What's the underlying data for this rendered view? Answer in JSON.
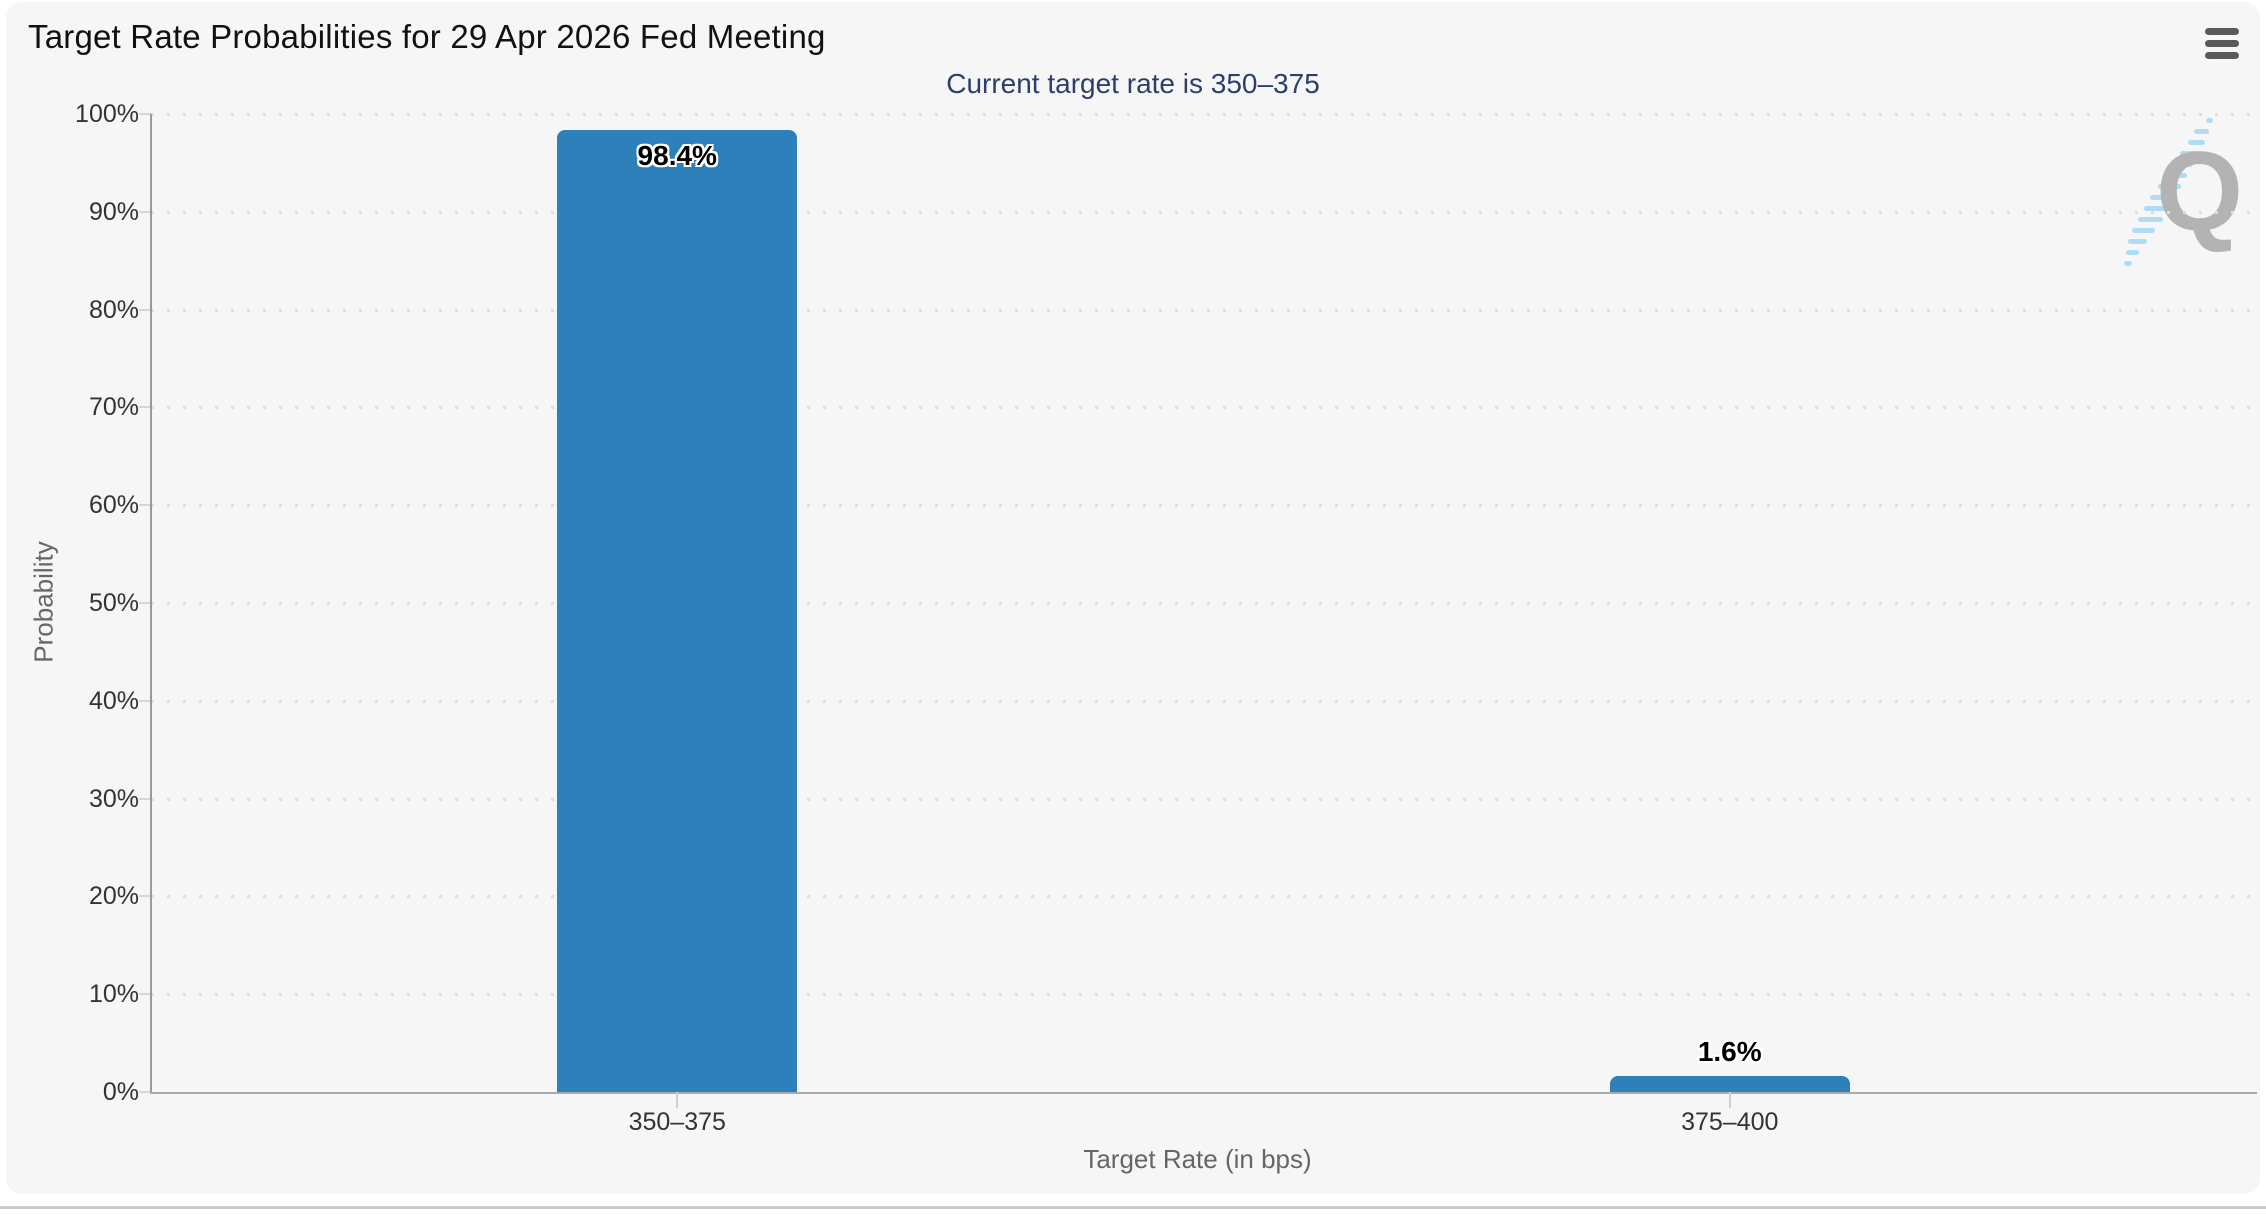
{
  "page": {
    "background": "#ffffff",
    "card_background": "#f6f6f6"
  },
  "header": {
    "title": "Target Rate Probabilities for 29 Apr 2026 Fed Meeting"
  },
  "watermark": {
    "letter": "Q"
  },
  "chart_data": {
    "type": "bar",
    "title": "Target Rate Probabilities for 29 Apr 2026 Fed Meeting",
    "subtitle": "Current target rate is 350–375",
    "categories": [
      "350–375",
      "375–400"
    ],
    "values": [
      98.4,
      1.6
    ],
    "value_labels": [
      "98.4%",
      "1.6%"
    ],
    "xlabel": "Target Rate (in bps)",
    "ylabel": "Probability",
    "ylim": [
      0,
      100
    ],
    "ytick_step": 10,
    "ytick_suffix": "%",
    "ytick_labels": [
      "0%",
      "10%",
      "20%",
      "30%",
      "40%",
      "50%",
      "60%",
      "70%",
      "80%",
      "90%",
      "100%"
    ],
    "grid": "horizontal-dotted",
    "legend": "none",
    "bar_color": "#2d80ba",
    "subtitle_color": "#2b3f6b",
    "label_color": "#333333",
    "axis_title_color": "#666666"
  }
}
